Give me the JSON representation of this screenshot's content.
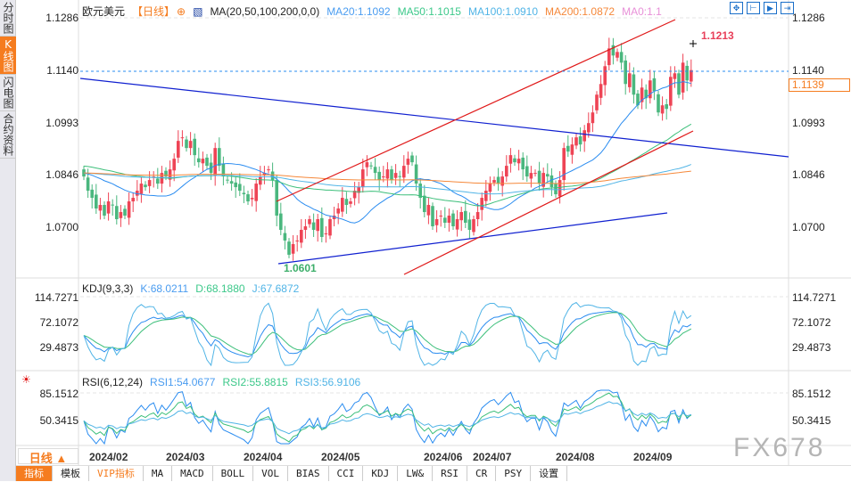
{
  "sidebar": {
    "tabs": [
      "分时图",
      "K线图",
      "闪电图",
      "合约资料"
    ],
    "active": 1
  },
  "header": {
    "symbol": "欧元美元",
    "period": "【日线】",
    "ma_label": "MA(20,50,100,200,0,0)",
    "ma20": "MA20:1.1092",
    "ma50": "MA50:1.1015",
    "ma100": "MA100:1.0910",
    "ma200": "MA200:1.0872",
    "ma0": "MA0:1.1"
  },
  "colors": {
    "up": "#ee4455",
    "down": "#4ab77e",
    "ma20": "#2a8cf0",
    "ma50": "#3cbf7a",
    "ma100": "#50b4e6",
    "ma200": "#f5883a",
    "accent": "#f57c1f"
  },
  "price_axis": {
    "ticks": [
      "1.1286",
      "1.1140",
      "1.0993",
      "1.0846",
      "1.0700"
    ],
    "current_price": "1.1139",
    "high_label": "1.1213",
    "low_label": "1.0601"
  },
  "kdj": {
    "label": "KDJ(9,3,3)",
    "k": "K:68.0211",
    "d": "D:68.1880",
    "j": "J:67.6872",
    "ticks": [
      "114.7271",
      "72.1072",
      "29.4873"
    ]
  },
  "rsi": {
    "label": "RSI(6,12,24)",
    "rsi1": "RSI1:54.0677",
    "rsi2": "RSI2:55.8815",
    "rsi3": "RSI3:56.9106",
    "ticks": [
      "85.1512",
      "50.3415"
    ]
  },
  "dates": [
    "2024/02",
    "2024/03",
    "2024/04",
    "2024/05",
    "2024/06",
    "2024/07",
    "2024/08",
    "2024/09"
  ],
  "period_selector": "日线 ▲",
  "toolbar": [
    "指标",
    "模板",
    "VIP指标",
    "MA",
    "MACD",
    "BOLL",
    "VOL",
    "BIAS",
    "CCI",
    "KDJ",
    "LW&",
    "RSI",
    "CR",
    "PSY",
    "设置"
  ],
  "watermark": "FX678",
  "chart_data": {
    "type": "candlestick",
    "title": "欧元美元【日线】",
    "x_range": [
      "2024/02",
      "2024/09"
    ],
    "ylim": [
      1.06,
      1.1286
    ],
    "closes": [
      1.084,
      1.08,
      1.078,
      1.075,
      1.076,
      1.073,
      1.077,
      1.076,
      1.072,
      1.074,
      1.073,
      1.077,
      1.078,
      1.08,
      1.082,
      1.081,
      1.083,
      1.084,
      1.082,
      1.085,
      1.084,
      1.086,
      1.089,
      1.094,
      1.095,
      1.092,
      1.094,
      1.09,
      1.088,
      1.089,
      1.087,
      1.085,
      1.092,
      1.087,
      1.084,
      1.083,
      1.082,
      1.081,
      1.08,
      1.079,
      1.077,
      1.078,
      1.082,
      1.084,
      1.085,
      1.086,
      1.083,
      1.073,
      1.069,
      1.066,
      1.062,
      1.065,
      1.066,
      1.069,
      1.07,
      1.072,
      1.069,
      1.072,
      1.067,
      1.068,
      1.072,
      1.073,
      1.075,
      1.078,
      1.076,
      1.077,
      1.08,
      1.081,
      1.086,
      1.088,
      1.087,
      1.085,
      1.083,
      1.084,
      1.086,
      1.083,
      1.085,
      1.084,
      1.087,
      1.089,
      1.088,
      1.082,
      1.078,
      1.074,
      1.076,
      1.07,
      1.072,
      1.073,
      1.071,
      1.073,
      1.07,
      1.072,
      1.074,
      1.071,
      1.069,
      1.072,
      1.074,
      1.078,
      1.08,
      1.082,
      1.083,
      1.082,
      1.084,
      1.087,
      1.09,
      1.088,
      1.089,
      1.086,
      1.084,
      1.085,
      1.085,
      1.082,
      1.085,
      1.084,
      1.081,
      1.079,
      1.083,
      1.092,
      1.091,
      1.093,
      1.095,
      1.093,
      1.097,
      1.099,
      1.102,
      1.107,
      1.11,
      1.115,
      1.12,
      1.118,
      1.119,
      1.116,
      1.11,
      1.113,
      1.107,
      1.104,
      1.109,
      1.106,
      1.111,
      1.108,
      1.102,
      1.104,
      1.103,
      1.112,
      1.113,
      1.107,
      1.116,
      1.111,
      1.1139
    ]
  }
}
